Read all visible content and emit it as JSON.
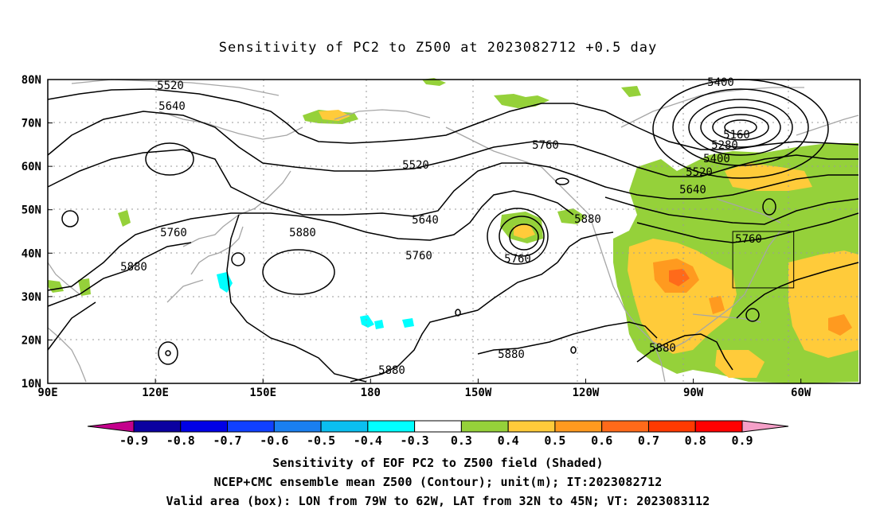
{
  "title": "Sensitivity of PC2 to Z500 at 2023082712 +0.5 day",
  "map": {
    "lat_labels": [
      "80N",
      "70N",
      "60N",
      "50N",
      "40N",
      "30N",
      "20N",
      "10N"
    ],
    "lon_labels": [
      "90E",
      "120E",
      "150E",
      "180",
      "150W",
      "120W",
      "90W",
      "60W"
    ],
    "valid_box": {
      "lon_from": -79,
      "lon_to": -62,
      "lat_from": 32,
      "lat_to": 45
    },
    "contour_labels": [
      "5520",
      "5640",
      "5760",
      "5880",
      "5520",
      "5640",
      "5760",
      "5760",
      "5880",
      "5880",
      "5880",
      "5880",
      "5880",
      "5400",
      "5160",
      "5280",
      "5400",
      "5520",
      "5640",
      "5760",
      "5760"
    ]
  },
  "colorbar": {
    "values": [
      "-0.9",
      "-0.8",
      "-0.7",
      "-0.6",
      "-0.5",
      "-0.4",
      "-0.3",
      "0.3",
      "0.4",
      "0.5",
      "0.6",
      "0.7",
      "0.8",
      "0.9"
    ],
    "colors": [
      "#0b00a0",
      "#0000e6",
      "#1040ff",
      "#1a7ff0",
      "#0bbff0",
      "#00ffff",
      "#ffffff",
      "#95d13a",
      "#ffcb3a",
      "#ff9a1f",
      "#ff6a1a",
      "#ff3a00",
      "#ff0000"
    ],
    "low_end_color": "#c4008c",
    "high_end_color": "#f5a0c8"
  },
  "captions": [
    "Sensitivity of EOF PC2 to Z500 field (Shaded)",
    "NCEP+CMC ensemble mean Z500 (Contour); unit(m); IT:2023082712",
    "Valid area (box): LON from 79W to 62W, LAT from 32N to 45N; VT: 2023083112"
  ]
}
